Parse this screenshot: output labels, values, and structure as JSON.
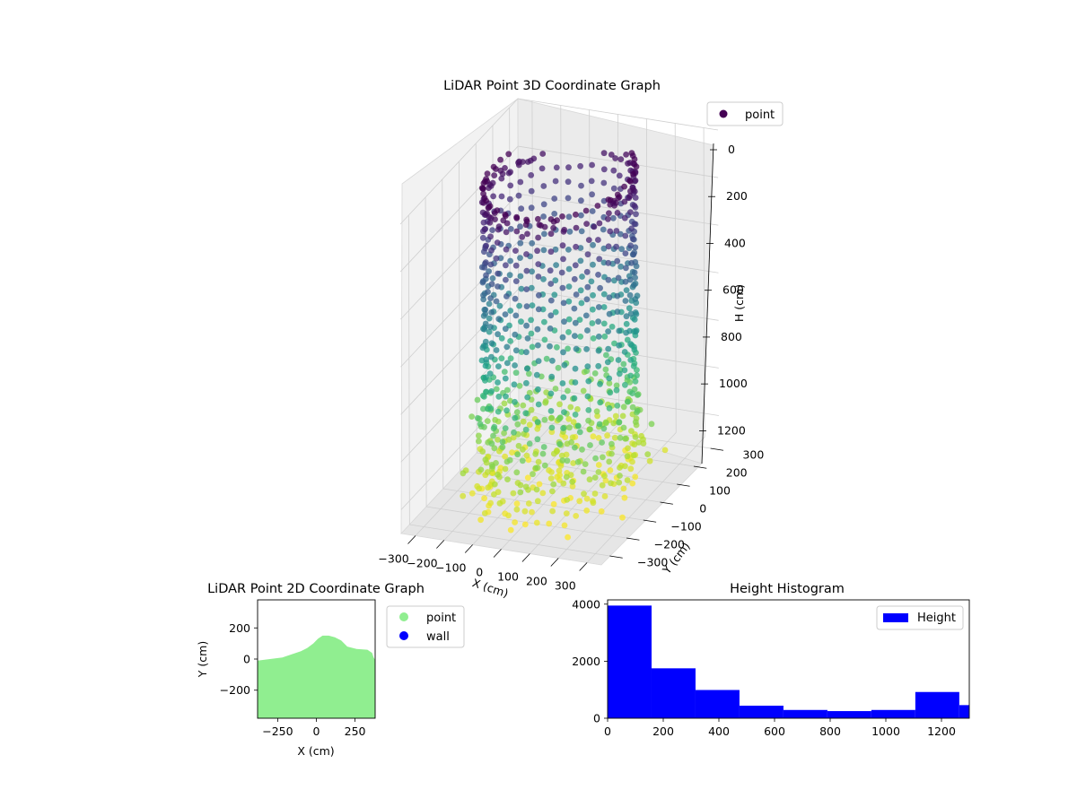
{
  "colors": {
    "colormap": "viridis",
    "pane": "#f2f2f2",
    "grid": "#cfcfcf",
    "legend_point_3d": "#440154",
    "point_2d": "#90ee90",
    "wall": "#0000ff",
    "hist_bar": "#0000ff"
  },
  "chart_data": [
    {
      "id": "scatter3d",
      "type": "scatter",
      "subtype": "3d",
      "title": "LiDAR Point 3D Coordinate Graph",
      "xlabel": "X (cm)",
      "ylabel": "Y (cm)",
      "zlabel": "H (cm)",
      "x_ticks": [
        "−300",
        "−200",
        "−100",
        "0",
        "100",
        "200",
        "300"
      ],
      "y_ticks": [
        "−300",
        "−200",
        "−100",
        "0",
        "100",
        "200",
        "300"
      ],
      "z_ticks": [
        "0",
        "200",
        "400",
        "600",
        "800",
        "1000",
        "1200"
      ],
      "xlim": [
        -350,
        350
      ],
      "ylim": [
        -350,
        350
      ],
      "zlim": [
        0,
        1300
      ],
      "z_inverted": true,
      "legend": {
        "entries": [
          "point"
        ],
        "placement": "top-right"
      },
      "color_by": "height",
      "colormap": "viridis",
      "grid": true,
      "description_shape": "cylindrical ring of scan columns, radius about 230 cm, points spanning heights 0-1300 cm; dense ring at top, sparse near the floor"
    },
    {
      "id": "scatter2d",
      "type": "scatter",
      "title": "LiDAR Point 2D Coordinate Graph",
      "xlabel": "X (cm)",
      "ylabel": "Y (cm)",
      "x_ticks": [
        "−250",
        "0",
        "250"
      ],
      "y_ticks": [
        "200",
        "0",
        "−200"
      ],
      "xlim": [
        -380,
        380
      ],
      "ylim": [
        -380,
        380
      ],
      "series": [
        {
          "name": "point",
          "color": "#90ee90",
          "outline": [
            [
              -380,
              -380
            ],
            [
              -380,
              -10
            ],
            [
              -300,
              0
            ],
            [
              -220,
              10
            ],
            [
              -160,
              30
            ],
            [
              -100,
              50
            ],
            [
              -60,
              70
            ],
            [
              -20,
              100
            ],
            [
              10,
              130
            ],
            [
              40,
              150
            ],
            [
              80,
              150
            ],
            [
              120,
              140
            ],
            [
              160,
              120
            ],
            [
              200,
              80
            ],
            [
              260,
              65
            ],
            [
              330,
              60
            ],
            [
              360,
              40
            ],
            [
              370,
              10
            ],
            [
              380,
              -5
            ],
            [
              380,
              -380
            ]
          ]
        },
        {
          "name": "wall",
          "color": "#0000ff",
          "outline": []
        }
      ],
      "legend": {
        "entries": [
          "point",
          "wall"
        ],
        "placement": "outside-right"
      },
      "grid": false
    },
    {
      "id": "histogram",
      "type": "bar",
      "subtype": "histogram",
      "title": "Height Histogram",
      "x_ticks": [
        "0",
        "200",
        "400",
        "600",
        "800",
        "1000",
        "1200"
      ],
      "y_ticks": [
        "0",
        "2000",
        "4000"
      ],
      "xlim": [
        0,
        1300
      ],
      "ylim": [
        0,
        4150
      ],
      "bin_edges": [
        0,
        158,
        316,
        474,
        632,
        790,
        948,
        1106,
        1264,
        1422
      ],
      "values": [
        3950,
        1750,
        990,
        440,
        290,
        250,
        290,
        920,
        460
      ],
      "series": [
        {
          "name": "Height",
          "values": [
            3950,
            1750,
            990,
            440,
            290,
            250,
            290,
            920,
            460
          ]
        }
      ],
      "legend": {
        "entries": [
          "Height"
        ],
        "placement": "top-right"
      },
      "grid": false
    }
  ]
}
